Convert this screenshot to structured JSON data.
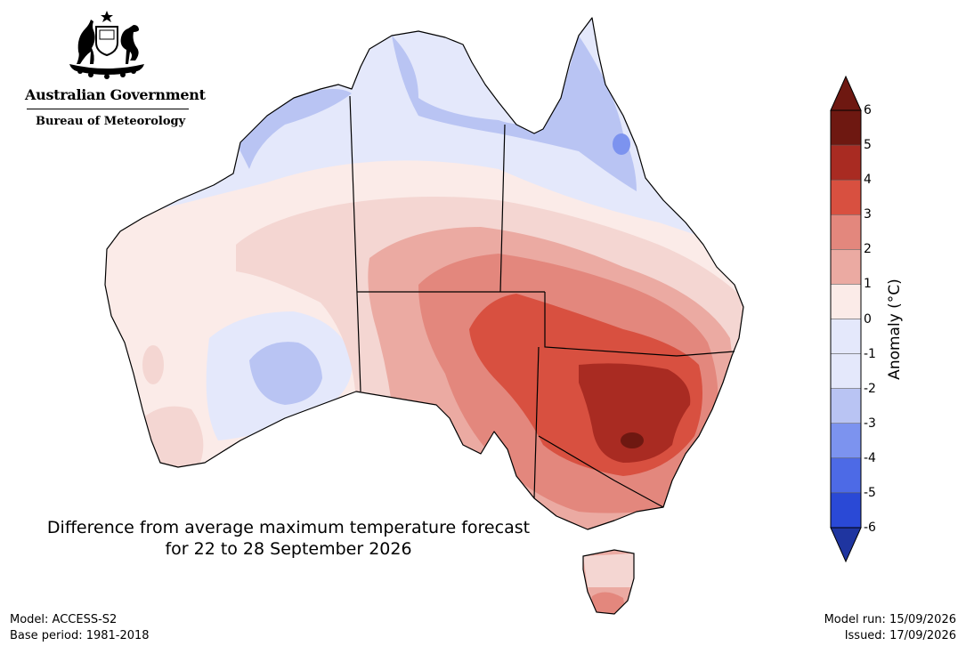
{
  "header": {
    "logo_org": "Australian Government",
    "logo_dept": "Bureau of Meteorology"
  },
  "map": {
    "title_line1": "Difference from average maximum temperature forecast",
    "title_line2": "for 22 to 28 September 2026",
    "region": "Australia",
    "colors": {
      "-6": "#1f35a0",
      "-5": "#2a49d6",
      "-4": "#4d6ae6",
      "-3": "#7c93ef",
      "-2": "#b9c4f3",
      "-1": "#e4e8fb",
      "0": "#fbebe8",
      "1": "#f4d6d2",
      "2": "#ebaaa2",
      "3": "#e3877d",
      "4": "#d85040",
      "5": "#a92b22",
      "6": "#6e1811"
    }
  },
  "legend": {
    "label": "Anomaly (°C)",
    "ticks": [
      "6",
      "5",
      "4",
      "3",
      "2",
      "1",
      "0",
      "-1",
      "-2",
      "-3",
      "-4",
      "-5",
      "-6"
    ]
  },
  "footer": {
    "model": "Model: ACCESS-S2",
    "base_period": "Base period: 1981-2018",
    "model_run": "Model run: 15/09/2026",
    "issued": "Issued: 17/09/2026"
  }
}
